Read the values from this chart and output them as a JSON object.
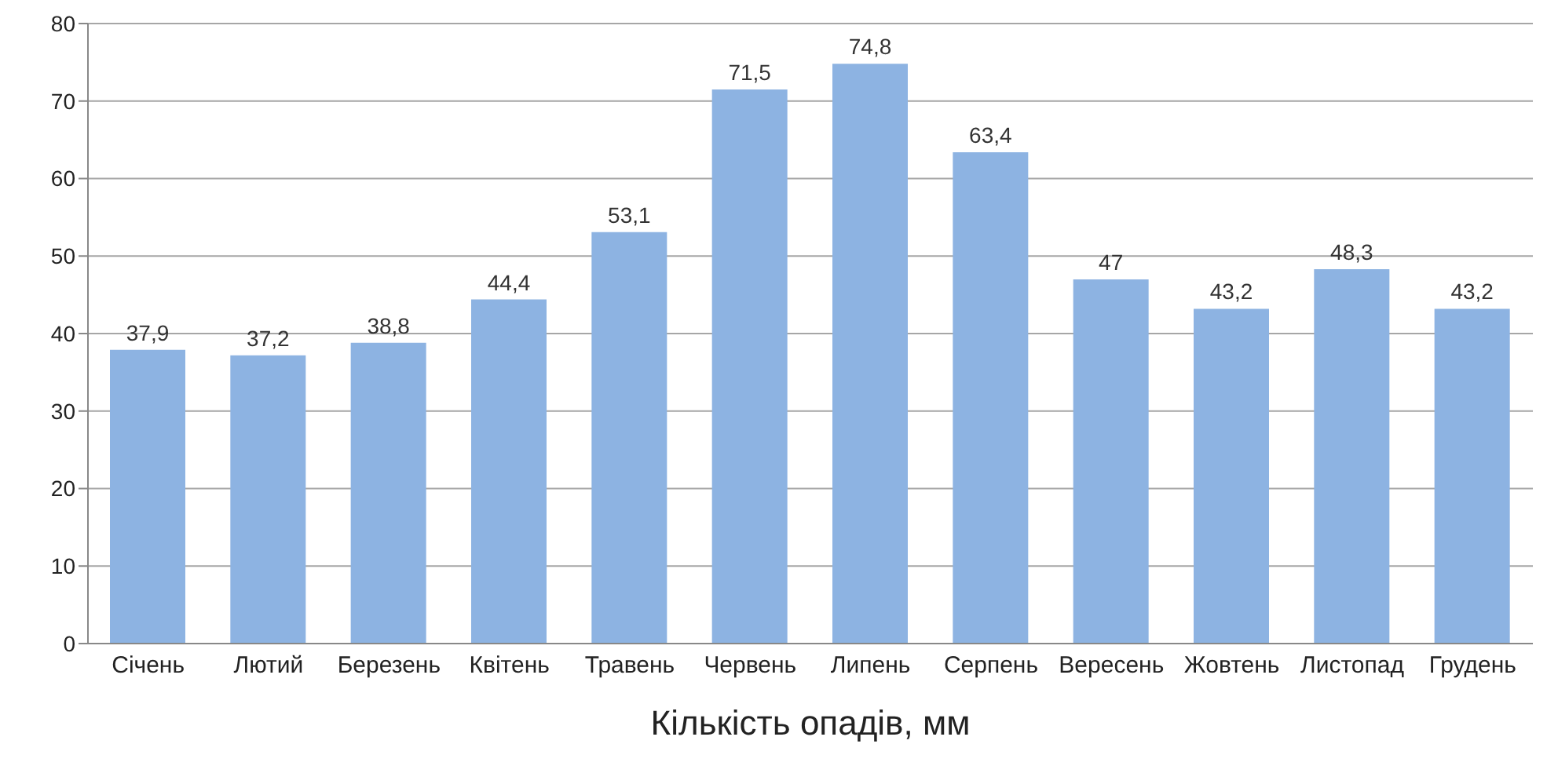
{
  "chart_data": {
    "type": "bar",
    "xlabel": "Кількість опадів, мм",
    "categories": [
      "Січень",
      "Лютий",
      "Березень",
      "Квітень",
      "Травень",
      "Червень",
      "Липень",
      "Серпень",
      "Вересень",
      "Жовтень",
      "Листопад",
      "Грудень"
    ],
    "values": [
      37.9,
      37.2,
      38.8,
      44.4,
      53.1,
      71.5,
      74.8,
      63.4,
      47,
      43.2,
      48.3,
      43.2
    ],
    "value_labels": [
      "37,9",
      "37,2",
      "38,8",
      "44,4",
      "53,1",
      "71,5",
      "74,8",
      "63,4",
      "47",
      "43,2",
      "48,3",
      "43,2"
    ],
    "color": "#8db3e2",
    "ylim": [
      0,
      80
    ],
    "yticks": [
      0,
      10,
      20,
      30,
      40,
      50,
      60,
      70,
      80
    ],
    "grid": "y"
  }
}
